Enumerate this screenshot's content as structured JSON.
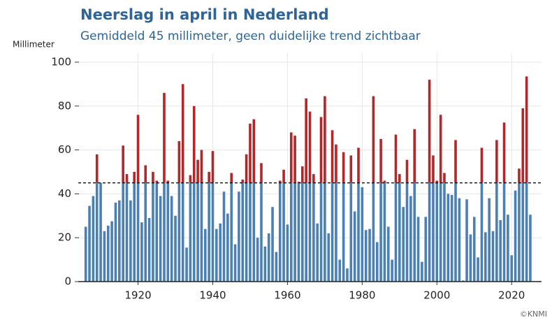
{
  "chart_data": {
    "type": "bar",
    "title": "Neerslag in april in Nederland",
    "subtitle": "Gemiddeld 45 millimeter, geen duidelijke trend zichtbaar",
    "y_label": "Millimeter",
    "source": "©KNMI",
    "x": [
      1906,
      1907,
      1908,
      1909,
      1910,
      1911,
      1912,
      1913,
      1914,
      1915,
      1916,
      1917,
      1918,
      1919,
      1920,
      1921,
      1922,
      1923,
      1924,
      1925,
      1926,
      1927,
      1928,
      1929,
      1930,
      1931,
      1932,
      1933,
      1934,
      1935,
      1936,
      1937,
      1938,
      1939,
      1940,
      1941,
      1942,
      1943,
      1944,
      1945,
      1946,
      1947,
      1948,
      1949,
      1950,
      1951,
      1952,
      1953,
      1954,
      1955,
      1956,
      1957,
      1958,
      1959,
      1960,
      1961,
      1962,
      1963,
      1964,
      1965,
      1966,
      1967,
      1968,
      1969,
      1970,
      1971,
      1972,
      1973,
      1974,
      1975,
      1976,
      1977,
      1978,
      1979,
      1980,
      1981,
      1982,
      1983,
      1984,
      1985,
      1986,
      1987,
      1988,
      1989,
      1990,
      1991,
      1992,
      1993,
      1994,
      1995,
      1996,
      1997,
      1998,
      1999,
      2000,
      2001,
      2002,
      2003,
      2004,
      2005,
      2006,
      2007,
      2008,
      2009,
      2010,
      2011,
      2012,
      2013,
      2014,
      2015,
      2016,
      2017,
      2018,
      2019,
      2020,
      2021,
      2022,
      2023,
      2024,
      2025
    ],
    "values": [
      25,
      34.5,
      39,
      58,
      45,
      23,
      25.5,
      27.5,
      36,
      37,
      62,
      49,
      37,
      50,
      76,
      27,
      53,
      29,
      50,
      46,
      39,
      86,
      46,
      39,
      30,
      64,
      90,
      15.5,
      48.5,
      80,
      55.5,
      60,
      24,
      50,
      59.5,
      24,
      26.5,
      41,
      31,
      49.5,
      17,
      41,
      46.5,
      58,
      72,
      74,
      20,
      54,
      16,
      22,
      34,
      13.5,
      46,
      51,
      26,
      68,
      66.5,
      45.5,
      52.5,
      83.5,
      77.5,
      49,
      26.5,
      75,
      84.5,
      22,
      69,
      62.5,
      10,
      59,
      6,
      57.5,
      32,
      61,
      43,
      23.5,
      24,
      84.5,
      18,
      65,
      46,
      25,
      10,
      67,
      49,
      34,
      55.5,
      39,
      69.5,
      29.5,
      9,
      29.5,
      92,
      57.5,
      46,
      76,
      49.5,
      40,
      39.5,
      64.5,
      38,
      0.5,
      37.5,
      21.5,
      29.5,
      11,
      61,
      22.5,
      38,
      23,
      64.5,
      28,
      72.5,
      30.5,
      12,
      41.5,
      51.5,
      79,
      93.5,
      30.5
    ],
    "mean": 45,
    "color": "#4a80b5",
    "above_color": "#b3272a",
    "xlim": [
      1904,
      2028
    ],
    "xticks": [
      1920,
      1940,
      1960,
      1980,
      2000,
      2020
    ],
    "ylim": [
      0,
      104
    ],
    "yticks": [
      0,
      20,
      40,
      60,
      80,
      100
    ],
    "grid": true
  }
}
